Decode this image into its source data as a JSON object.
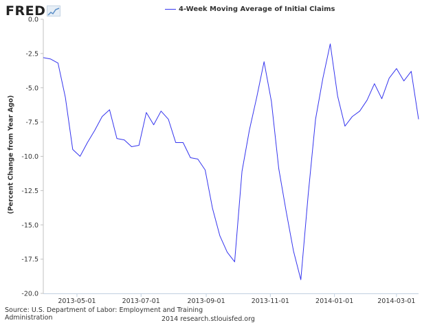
{
  "brand": {
    "logo_text": "FRED"
  },
  "chart_data": {
    "type": "line",
    "title": "",
    "xlabel": "",
    "ylabel": "(Percent Change from Year Ago)",
    "ylim": [
      -20,
      0
    ],
    "yticks": [
      0,
      -2.5,
      -5,
      -7.5,
      -10,
      -12.5,
      -15,
      -17.5,
      -20
    ],
    "ytick_labels": [
      "0.0",
      "-2.5",
      "-5.0",
      "-7.5",
      "-10.0",
      "-12.5",
      "-15.0",
      "-17.5",
      "-20.0"
    ],
    "xlim": [
      "2013-03-30",
      "2014-03-22"
    ],
    "xticks": [
      "2013-05-01",
      "2013-07-01",
      "2013-09-01",
      "2013-11-01",
      "2014-01-01",
      "2014-03-01"
    ],
    "grid": false,
    "legend": "top",
    "series": [
      {
        "name": "4-Week Moving Average of Initial Claims",
        "color": "#3333ee",
        "x": [
          "2013-03-30",
          "2013-04-06",
          "2013-04-13",
          "2013-04-20",
          "2013-04-27",
          "2013-05-04",
          "2013-05-11",
          "2013-05-18",
          "2013-05-25",
          "2013-06-01",
          "2013-06-08",
          "2013-06-15",
          "2013-06-22",
          "2013-06-29",
          "2013-07-06",
          "2013-07-13",
          "2013-07-20",
          "2013-07-27",
          "2013-08-03",
          "2013-08-10",
          "2013-08-17",
          "2013-08-24",
          "2013-08-31",
          "2013-09-07",
          "2013-09-14",
          "2013-09-21",
          "2013-09-28",
          "2013-10-05",
          "2013-10-12",
          "2013-10-19",
          "2013-10-26",
          "2013-11-02",
          "2013-11-09",
          "2013-11-16",
          "2013-11-23",
          "2013-11-30",
          "2013-12-07",
          "2013-12-14",
          "2013-12-21",
          "2013-12-28",
          "2014-01-04",
          "2014-01-11",
          "2014-01-18",
          "2014-01-25",
          "2014-02-01",
          "2014-02-08",
          "2014-02-15",
          "2014-02-22",
          "2014-03-01",
          "2014-03-08",
          "2014-03-15",
          "2014-03-22"
        ],
        "values": [
          -2.8,
          -2.9,
          -3.2,
          -5.7,
          -9.5,
          -10.0,
          -9.0,
          -8.1,
          -7.1,
          -6.6,
          -8.7,
          -8.8,
          -9.3,
          -9.2,
          -6.8,
          -7.7,
          -6.7,
          -7.3,
          -9.0,
          -9.0,
          -10.1,
          -10.2,
          -11.0,
          -13.8,
          -15.8,
          -17.0,
          -17.7,
          -11.1,
          -8.1,
          -5.7,
          -3.1,
          -6.0,
          -10.9,
          -14.0,
          -16.9,
          -19.0,
          -12.8,
          -7.3,
          -4.3,
          -1.8,
          -5.6,
          -7.8,
          -7.1,
          -6.7,
          -5.9,
          -4.7,
          -5.8,
          -4.3,
          -3.6,
          -4.5,
          -3.8,
          -7.3
        ]
      }
    ]
  },
  "source": {
    "line1": "Source: U.S. Department of Labor: Employment and Training",
    "line2": "Administration"
  },
  "footer": "2014 research.stlouisfed.org"
}
